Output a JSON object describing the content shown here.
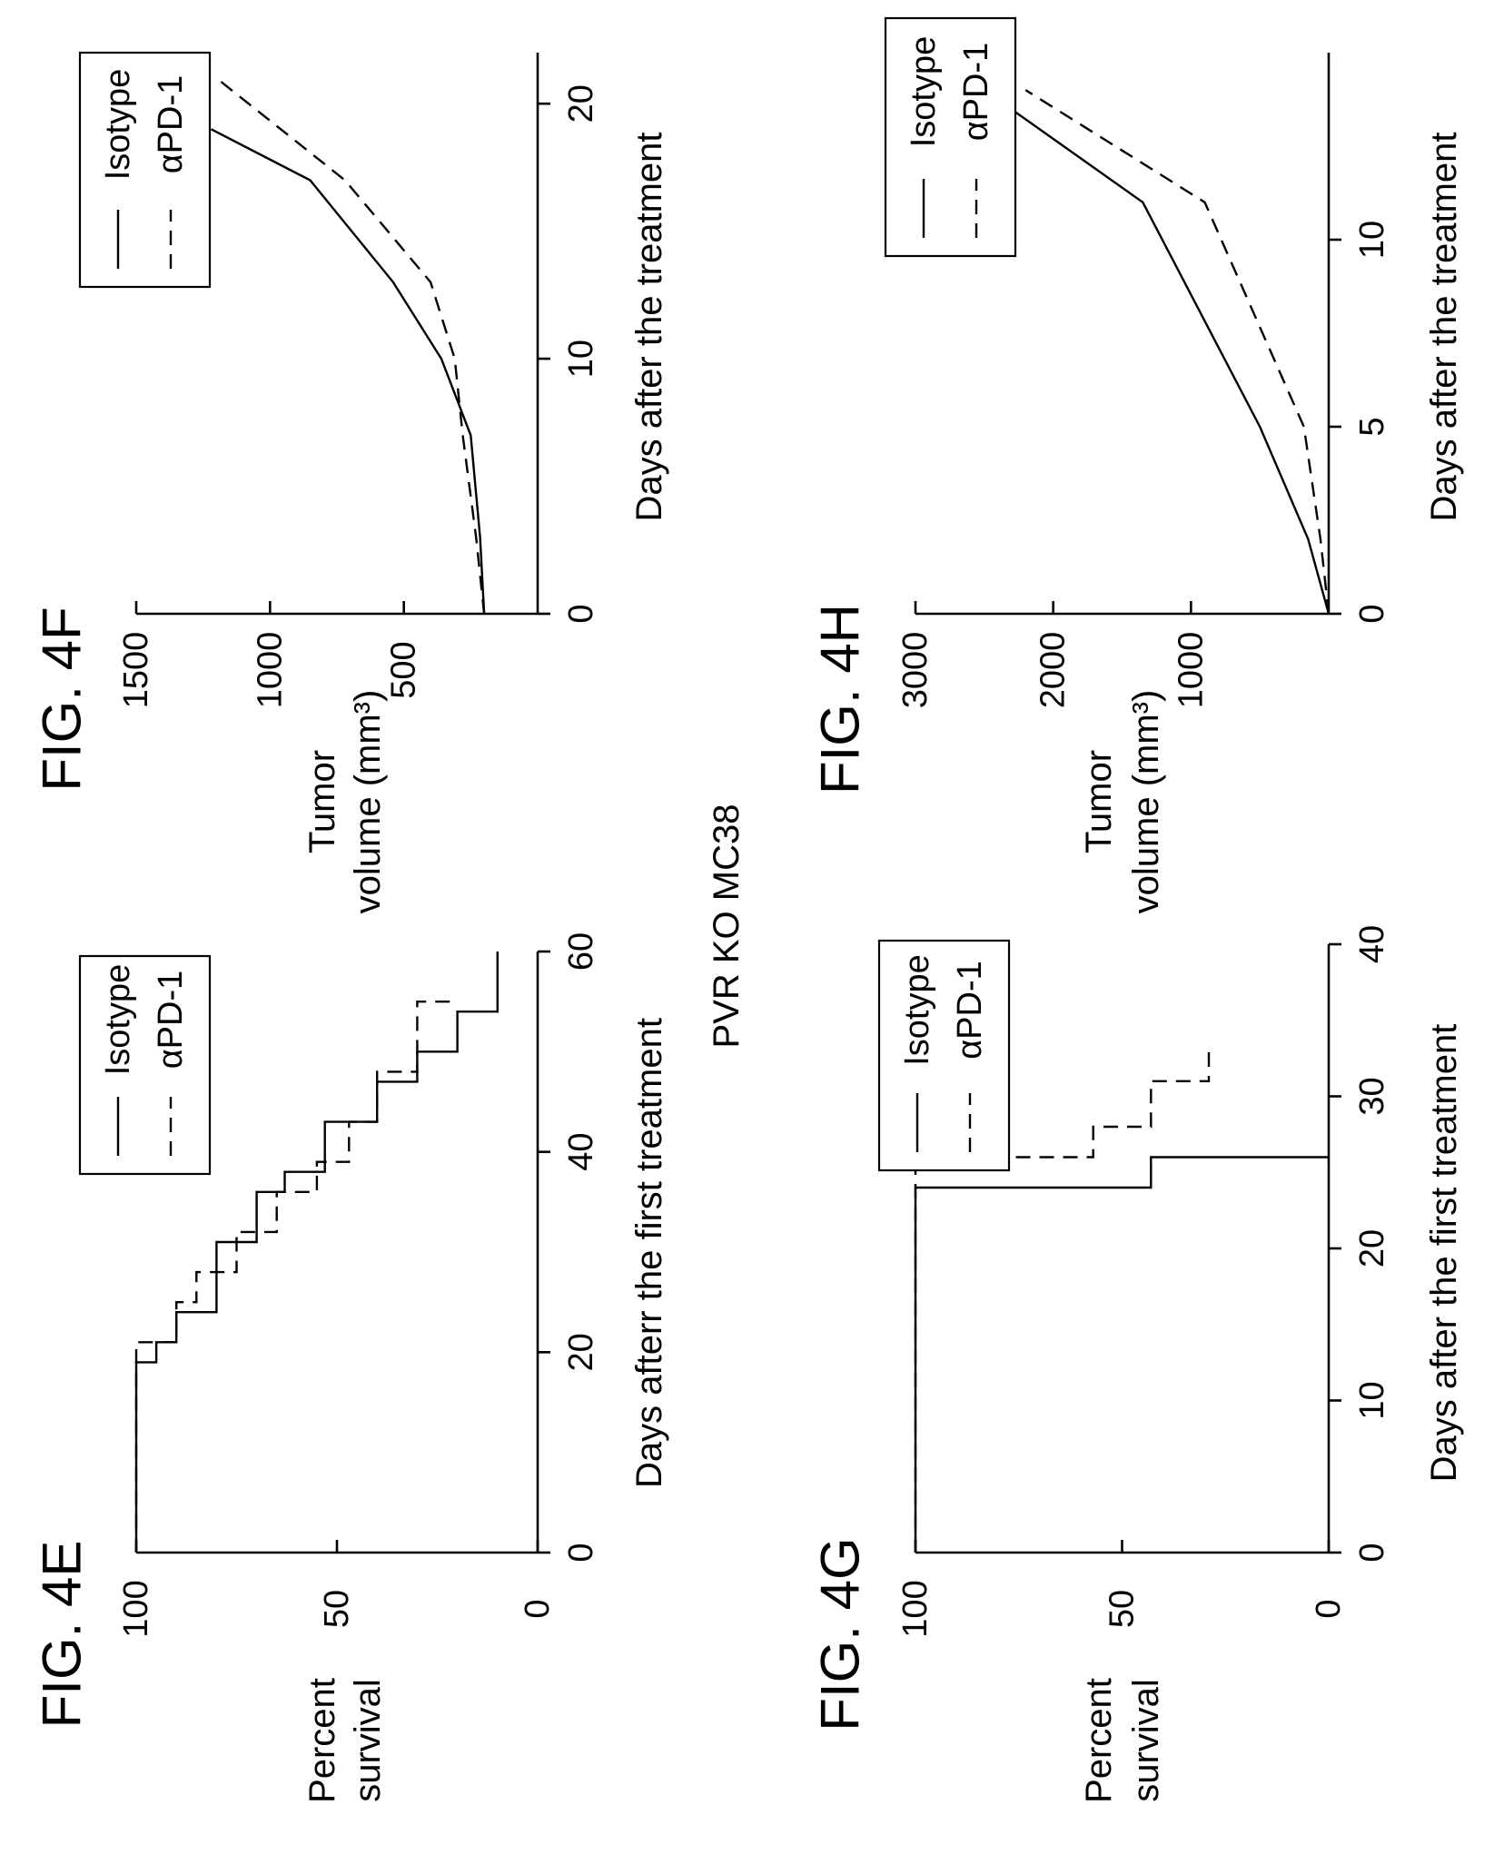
{
  "page": {
    "center_title": "PVR KO MC38"
  },
  "chart_data": [
    {
      "id": "4E",
      "type": "line",
      "step": true,
      "title": "FIG. 4E",
      "xlabel": "Days afterr the first treatment",
      "ylabel": [
        "Percent",
        "survival"
      ],
      "xlim": [
        0,
        60
      ],
      "ylim": [
        0,
        100
      ],
      "xticks": [
        "0",
        "20",
        "40",
        "60"
      ],
      "yticks": [
        "0",
        "50",
        "100"
      ],
      "legend_position": "top-right",
      "series": [
        {
          "name": "Isotype",
          "style": "solid",
          "x": [
            0,
            19,
            19,
            21,
            21,
            24,
            24,
            31,
            31,
            36,
            36,
            38,
            38,
            43,
            43,
            47,
            47,
            50,
            50,
            54,
            54,
            60
          ],
          "y": [
            100,
            100,
            95,
            95,
            90,
            90,
            80,
            80,
            70,
            70,
            63,
            63,
            53,
            53,
            40,
            40,
            30,
            30,
            20,
            20,
            10,
            10
          ]
        },
        {
          "name": "αPD-1",
          "style": "dashed",
          "x": [
            0,
            21,
            21,
            25,
            25,
            28,
            28,
            32,
            32,
            36,
            36,
            39,
            39,
            43,
            43,
            48,
            48,
            55,
            55
          ],
          "y": [
            100,
            100,
            90,
            90,
            85,
            85,
            75,
            75,
            65,
            65,
            55,
            55,
            47,
            47,
            40,
            40,
            30,
            30,
            20
          ]
        }
      ]
    },
    {
      "id": "4F",
      "type": "line",
      "title": "FIG. 4F",
      "xlabel": "Days after the treatment",
      "ylabel": [
        "Tumor",
        "volume (mm³)"
      ],
      "xlim": [
        0,
        22
      ],
      "ylim": [
        0,
        1500
      ],
      "xticks": [
        "0",
        "10",
        "20"
      ],
      "yticks": [
        "500",
        "1000",
        "1500"
      ],
      "legend_position": "top-right",
      "series": [
        {
          "name": "Isotype",
          "style": "solid",
          "x": [
            0,
            3,
            7,
            10,
            13,
            17,
            19
          ],
          "y": [
            200,
            215,
            250,
            360,
            540,
            850,
            1220
          ]
        },
        {
          "name": "αPD-1",
          "style": "dashed",
          "x": [
            0,
            3,
            7,
            10,
            13,
            15,
            17,
            21
          ],
          "y": [
            200,
            230,
            280,
            310,
            400,
            560,
            720,
            1200
          ]
        }
      ]
    },
    {
      "id": "4G",
      "type": "line",
      "step": true,
      "title": "FIG. 4G",
      "xlabel": "Days after the first treatment",
      "ylabel": [
        "Percent",
        "survival"
      ],
      "xlim": [
        0,
        40
      ],
      "ylim": [
        0,
        100
      ],
      "xticks": [
        "0",
        "10",
        "20",
        "30",
        "40"
      ],
      "yticks": [
        "0",
        "50",
        "100"
      ],
      "legend_position": "top-right",
      "series": [
        {
          "name": "Isotype",
          "style": "solid",
          "x": [
            0,
            24,
            24,
            26,
            26
          ],
          "y": [
            100,
            100,
            43,
            43,
            0
          ]
        },
        {
          "name": "αPD-1",
          "style": "dashed",
          "x": [
            0,
            26,
            26,
            28,
            28,
            31,
            31,
            33
          ],
          "y": [
            100,
            100,
            57,
            57,
            43,
            43,
            29,
            29
          ]
        }
      ]
    },
    {
      "id": "4H",
      "type": "line",
      "title": "FIG. 4H",
      "xlabel": "Days after the treatment",
      "ylabel": [
        "Tumor",
        "volume (mm³)"
      ],
      "xlim": [
        0,
        15
      ],
      "ylim": [
        0,
        3000
      ],
      "xticks": [
        "0",
        "5",
        "10"
      ],
      "yticks": [
        "1000",
        "2000",
        "3000"
      ],
      "legend_position": "top-right",
      "series": [
        {
          "name": "Isotype",
          "style": "solid",
          "x": [
            0,
            2,
            5,
            11,
            14
          ],
          "y": [
            0,
            150,
            500,
            1350,
            2500
          ]
        },
        {
          "name": "αPD-1",
          "style": "dashed",
          "x": [
            0,
            2,
            5,
            11,
            14
          ],
          "y": [
            0,
            60,
            180,
            900,
            2200
          ]
        }
      ]
    }
  ]
}
